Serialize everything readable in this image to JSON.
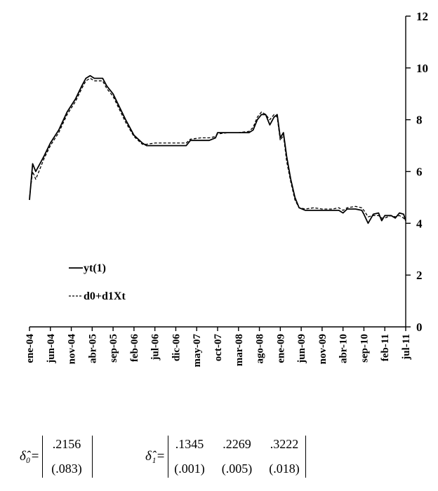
{
  "chart_data": {
    "type": "line",
    "title": "",
    "xlabel": "",
    "ylabel": "",
    "ylim": [
      0,
      12
    ],
    "yticks": [
      0,
      2,
      4,
      6,
      8,
      10,
      12
    ],
    "y_axis_position": "right",
    "legend_position": "lower-left",
    "grid": false,
    "categories": [
      "ene-04",
      "jun-04",
      "nov-04",
      "abr-05",
      "sep-05",
      "feb-06",
      "jul-06",
      "dic-06",
      "may-07",
      "oct-07",
      "mar-08",
      "ago-08",
      "ene-09",
      "jun-09",
      "nov-09",
      "abr-10",
      "sep-10",
      "feb-11",
      "jul-11"
    ],
    "series": [
      {
        "name": "yt(1)",
        "style": "solid",
        "color": "#000000",
        "points": [
          [
            0,
            4.9
          ],
          [
            0.15,
            6.3
          ],
          [
            0.3,
            6.0
          ],
          [
            0.5,
            6.3
          ],
          [
            0.7,
            6.6
          ],
          [
            1.0,
            7.1
          ],
          [
            1.4,
            7.6
          ],
          [
            1.8,
            8.3
          ],
          [
            2.2,
            8.8
          ],
          [
            2.5,
            9.3
          ],
          [
            2.7,
            9.6
          ],
          [
            2.9,
            9.7
          ],
          [
            3.1,
            9.6
          ],
          [
            3.3,
            9.6
          ],
          [
            3.5,
            9.6
          ],
          [
            3.7,
            9.3
          ],
          [
            4.0,
            9.0
          ],
          [
            4.3,
            8.5
          ],
          [
            4.6,
            8.0
          ],
          [
            5.0,
            7.4
          ],
          [
            5.4,
            7.1
          ],
          [
            5.6,
            7.0
          ],
          [
            6.0,
            7.0
          ],
          [
            6.5,
            7.0
          ],
          [
            7.0,
            7.0
          ],
          [
            7.3,
            7.0
          ],
          [
            7.5,
            7.0
          ],
          [
            7.7,
            7.2
          ],
          [
            8.2,
            7.2
          ],
          [
            8.6,
            7.2
          ],
          [
            8.9,
            7.3
          ],
          [
            9.0,
            7.5
          ],
          [
            9.5,
            7.5
          ],
          [
            10.0,
            7.5
          ],
          [
            10.5,
            7.5
          ],
          [
            10.7,
            7.6
          ],
          [
            10.9,
            8.0
          ],
          [
            11.1,
            8.2
          ],
          [
            11.3,
            8.2
          ],
          [
            11.5,
            7.8
          ],
          [
            11.7,
            8.1
          ],
          [
            11.85,
            8.2
          ],
          [
            12.0,
            7.3
          ],
          [
            12.15,
            7.5
          ],
          [
            12.3,
            6.6
          ],
          [
            12.5,
            5.7
          ],
          [
            12.7,
            5.0
          ],
          [
            12.9,
            4.6
          ],
          [
            13.2,
            4.5
          ],
          [
            13.6,
            4.5
          ],
          [
            14.0,
            4.5
          ],
          [
            14.5,
            4.5
          ],
          [
            14.8,
            4.5
          ],
          [
            15.0,
            4.4
          ],
          [
            15.2,
            4.55
          ],
          [
            15.6,
            4.55
          ],
          [
            15.9,
            4.5
          ],
          [
            16.0,
            4.35
          ],
          [
            16.2,
            4.0
          ],
          [
            16.45,
            4.35
          ],
          [
            16.7,
            4.4
          ],
          [
            16.85,
            4.1
          ],
          [
            17.0,
            4.3
          ],
          [
            17.3,
            4.3
          ],
          [
            17.5,
            4.2
          ],
          [
            17.7,
            4.4
          ],
          [
            17.9,
            4.35
          ],
          [
            18.0,
            4.1
          ]
        ]
      },
      {
        "name": "d0+d1Xt",
        "style": "dashed",
        "color": "#000000",
        "points": [
          [
            0,
            5.0
          ],
          [
            0.15,
            6.0
          ],
          [
            0.3,
            5.7
          ],
          [
            0.5,
            6.1
          ],
          [
            0.7,
            6.5
          ],
          [
            1.0,
            7.0
          ],
          [
            1.4,
            7.5
          ],
          [
            1.8,
            8.2
          ],
          [
            2.2,
            8.7
          ],
          [
            2.5,
            9.2
          ],
          [
            2.7,
            9.5
          ],
          [
            2.9,
            9.6
          ],
          [
            3.1,
            9.5
          ],
          [
            3.3,
            9.5
          ],
          [
            3.5,
            9.5
          ],
          [
            3.7,
            9.2
          ],
          [
            4.0,
            8.9
          ],
          [
            4.3,
            8.4
          ],
          [
            4.6,
            7.9
          ],
          [
            5.0,
            7.35
          ],
          [
            5.4,
            7.05
          ],
          [
            5.6,
            7.05
          ],
          [
            6.0,
            7.1
          ],
          [
            6.5,
            7.1
          ],
          [
            7.0,
            7.1
          ],
          [
            7.3,
            7.1
          ],
          [
            7.5,
            7.1
          ],
          [
            7.7,
            7.25
          ],
          [
            8.2,
            7.3
          ],
          [
            8.6,
            7.3
          ],
          [
            8.9,
            7.35
          ],
          [
            9.0,
            7.45
          ],
          [
            9.5,
            7.5
          ],
          [
            10.0,
            7.5
          ],
          [
            10.5,
            7.55
          ],
          [
            10.7,
            7.7
          ],
          [
            10.9,
            8.1
          ],
          [
            11.1,
            8.3
          ],
          [
            11.3,
            8.2
          ],
          [
            11.5,
            8.0
          ],
          [
            11.7,
            8.2
          ],
          [
            11.85,
            8.1
          ],
          [
            12.0,
            7.2
          ],
          [
            12.15,
            7.4
          ],
          [
            12.3,
            6.4
          ],
          [
            12.5,
            5.6
          ],
          [
            12.7,
            4.9
          ],
          [
            12.9,
            4.6
          ],
          [
            13.2,
            4.55
          ],
          [
            13.6,
            4.6
          ],
          [
            14.0,
            4.55
          ],
          [
            14.5,
            4.55
          ],
          [
            14.8,
            4.6
          ],
          [
            15.0,
            4.5
          ],
          [
            15.2,
            4.6
          ],
          [
            15.6,
            4.65
          ],
          [
            15.9,
            4.6
          ],
          [
            16.0,
            4.5
          ],
          [
            16.2,
            4.25
          ],
          [
            16.45,
            4.3
          ],
          [
            16.7,
            4.3
          ],
          [
            16.85,
            4.2
          ],
          [
            17.0,
            4.2
          ],
          [
            17.3,
            4.3
          ],
          [
            17.5,
            4.25
          ],
          [
            17.7,
            4.3
          ],
          [
            17.9,
            4.2
          ],
          [
            18.0,
            4.1
          ]
        ]
      }
    ]
  },
  "equations": {
    "delta0": {
      "symbol": "δ̂₀=",
      "estimate": ".2156",
      "std_error": "(.083)"
    },
    "delta1": {
      "symbol": "δ̂₁=",
      "estimates": [
        ".1345",
        ".2269",
        ".3222"
      ],
      "std_errors": [
        "(.001)",
        "(.005)",
        "(.018)"
      ]
    }
  }
}
